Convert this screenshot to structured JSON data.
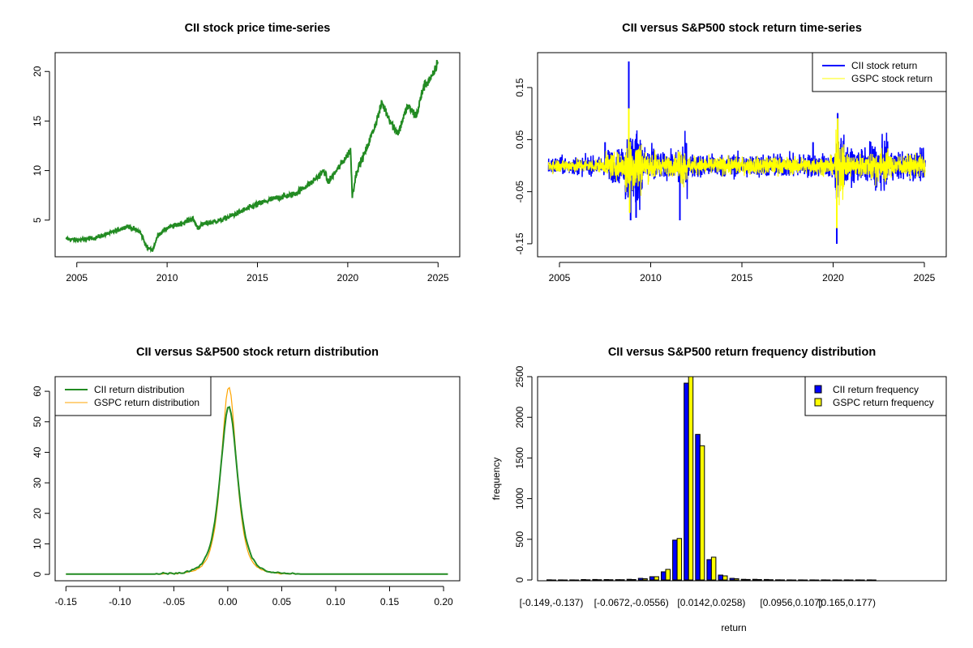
{
  "chart_data": [
    {
      "type": "line",
      "title": "CII stock price time-series",
      "xlim": [
        2003.8,
        2026.2
      ],
      "ylim": [
        1.3,
        21.9
      ],
      "xticks": [
        "2005",
        "2010",
        "2015",
        "2020",
        "2025"
      ],
      "yticks": [
        "5",
        "10",
        "15",
        "20"
      ],
      "color": "#228B22",
      "points": [
        [
          2004.4,
          3.1
        ],
        [
          2005,
          3.0
        ],
        [
          2006,
          3.2
        ],
        [
          2007,
          3.8
        ],
        [
          2007.8,
          4.4
        ],
        [
          2008.5,
          3.8
        ],
        [
          2008.9,
          2.2
        ],
        [
          2009.2,
          2.0
        ],
        [
          2009.5,
          3.5
        ],
        [
          2010,
          4.2
        ],
        [
          2011,
          4.8
        ],
        [
          2011.4,
          5.2
        ],
        [
          2011.7,
          4.2
        ],
        [
          2012,
          4.6
        ],
        [
          2013,
          5.0
        ],
        [
          2014,
          5.8
        ],
        [
          2015,
          6.6
        ],
        [
          2016,
          7.2
        ],
        [
          2017,
          7.6
        ],
        [
          2018,
          8.8
        ],
        [
          2018.7,
          10.0
        ],
        [
          2018.9,
          8.8
        ],
        [
          2019.5,
          10.3
        ],
        [
          2020,
          11.6
        ],
        [
          2020.15,
          12.2
        ],
        [
          2020.25,
          7.5
        ],
        [
          2020.5,
          10
        ],
        [
          2021,
          12
        ],
        [
          2021.5,
          14.5
        ],
        [
          2021.9,
          16.8
        ],
        [
          2022.5,
          14.5
        ],
        [
          2022.8,
          13.8
        ],
        [
          2023.3,
          16.5
        ],
        [
          2023.8,
          15.5
        ],
        [
          2024.2,
          18.5
        ],
        [
          2024.7,
          19.5
        ],
        [
          2025,
          21
        ]
      ]
    },
    {
      "type": "line",
      "title": "CII versus S&P500 stock return time-series",
      "xlim": [
        2003.8,
        2026.2
      ],
      "ylim": [
        -0.175,
        0.217
      ],
      "xticks": [
        "2005",
        "2010",
        "2015",
        "2020",
        "2025"
      ],
      "yticks": [
        "-0.15",
        "-0.05",
        "0.05",
        "0.15"
      ],
      "legend": {
        "position": "top-right",
        "entries": [
          "CII stock return",
          "GSPC stock return"
        ]
      },
      "series": [
        {
          "name": "CII stock return",
          "color": "#0000FF",
          "base_vol": 0.012,
          "spikes": [
            [
              2008.8,
              0.2
            ],
            [
              2008.9,
              -0.105
            ],
            [
              2009.2,
              -0.1
            ],
            [
              2011.6,
              -0.105
            ],
            [
              2020.2,
              -0.15
            ],
            [
              2020.25,
              0.1
            ],
            [
              2007.5,
              0.045
            ],
            [
              2018.9,
              0.045
            ]
          ]
        },
        {
          "name": "GSPC stock return",
          "color": "#FFFF00",
          "base_vol": 0.009,
          "spikes": [
            [
              2008.8,
              0.11
            ],
            [
              2008.85,
              -0.09
            ],
            [
              2020.2,
              -0.12
            ],
            [
              2020.25,
              0.09
            ]
          ]
        }
      ],
      "volatility_regimes": [
        [
          2004,
          2007.5,
          0.7
        ],
        [
          2007.5,
          2008.6,
          1.3
        ],
        [
          2008.6,
          2009.5,
          3.0
        ],
        [
          2009.5,
          2010.3,
          1.5
        ],
        [
          2010.3,
          2011.5,
          1.0
        ],
        [
          2011.5,
          2012,
          2.0
        ],
        [
          2012,
          2020.1,
          0.9
        ],
        [
          2020.1,
          2020.6,
          3.2
        ],
        [
          2020.6,
          2022,
          1.2
        ],
        [
          2022,
          2023,
          1.8
        ],
        [
          2023,
          2025.1,
          1.1
        ]
      ]
    },
    {
      "type": "line",
      "title": "CII versus S&P500 stock return distribution",
      "xlim": [
        -0.16,
        0.215
      ],
      "ylim": [
        -2.1,
        64.8
      ],
      "xticks": [
        "-0.15",
        "-0.10",
        "-0.05",
        "0.00",
        "0.05",
        "0.10",
        "0.15",
        "0.20"
      ],
      "yticks": [
        "0",
        "10",
        "20",
        "30",
        "40",
        "50",
        "60"
      ],
      "legend": {
        "position": "top-left",
        "entries": [
          "CII return distribution",
          "GSPC return distribution"
        ]
      },
      "series": [
        {
          "name": "CII return distribution",
          "color": "#228B22",
          "peak": 55,
          "center": 0.001,
          "scale": 0.0085
        },
        {
          "name": "GSPC return distribution",
          "color": "#FFA500",
          "peak": 61.5,
          "center": 0.001,
          "scale": 0.0075
        }
      ],
      "x_range": [
        -0.15,
        0.205
      ]
    },
    {
      "type": "bar",
      "title": "CII versus S&P500 return frequency distribution",
      "xlabel": "return",
      "ylabel": "frequency",
      "ylim": [
        0,
        2500
      ],
      "yticks": [
        "0",
        "500",
        "1000",
        "1500",
        "2000",
        "2500"
      ],
      "tick_labels": [
        [
          0,
          "[-0.149,-0.137)"
        ],
        [
          7,
          "[-0.0672,-0.0556)"
        ],
        [
          14,
          "[0.0142,0.0258)"
        ],
        [
          21,
          "[0.0956,0.107)"
        ],
        [
          26,
          "[0.165,0.177)"
        ]
      ],
      "legend": {
        "position": "top-right",
        "entries": [
          "CII return frequency",
          "GSPC return frequency"
        ]
      },
      "series": [
        {
          "name": "CII return frequency",
          "color": "#0000FF",
          "values": [
            2,
            1,
            1,
            5,
            6,
            5,
            4,
            8,
            20,
            40,
            100,
            490,
            2420,
            1790,
            250,
            60,
            20,
            8,
            8,
            6,
            2,
            1,
            1,
            1,
            1,
            1,
            1,
            1,
            1
          ]
        },
        {
          "name": "GSPC return frequency",
          "color": "#FFFF00",
          "values": [
            0,
            0,
            0,
            2,
            3,
            3,
            3,
            5,
            15,
            40,
            130,
            510,
            2550,
            1650,
            280,
            50,
            15,
            6,
            5,
            3,
            1,
            0,
            0,
            0,
            0,
            0,
            0,
            0,
            0
          ]
        }
      ]
    }
  ]
}
